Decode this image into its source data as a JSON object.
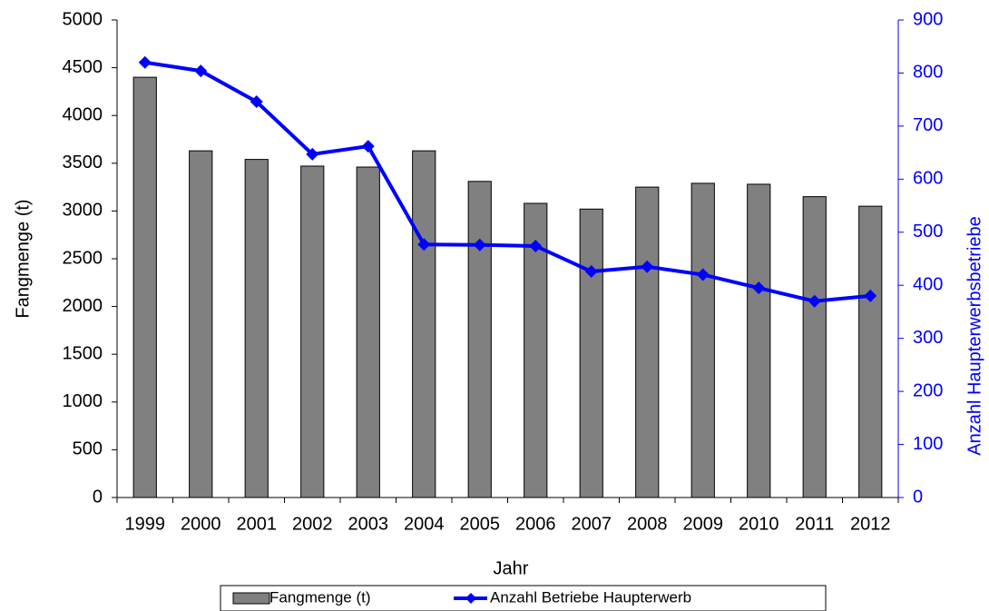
{
  "chart_data": {
    "type": "bar",
    "x_label": "Jahr",
    "y_label": "Fangmenge (t)",
    "y2_label": "Anzahl Haupterwerbsbetriebe",
    "categories": [
      "1999",
      "2000",
      "2001",
      "2002",
      "2003",
      "2004",
      "2005",
      "2006",
      "2007",
      "2008",
      "2009",
      "2010",
      "2011",
      "2012"
    ],
    "series": [
      {
        "name": "Fangmenge (t)",
        "type": "bar",
        "color": "#808080",
        "values": [
          4400,
          3630,
          3540,
          3470,
          3460,
          3630,
          3310,
          3080,
          3020,
          3250,
          3290,
          3280,
          3150,
          3050
        ]
      },
      {
        "name": "Anzahl Betriebe Haupterwerb",
        "type": "line",
        "axis": "y2",
        "color": "#0000ff",
        "values": [
          820,
          804,
          746,
          647,
          662,
          477,
          476,
          474,
          426,
          435,
          420,
          395,
          370,
          380
        ]
      }
    ],
    "ylim": [
      0,
      5000
    ],
    "yticks": [
      0,
      500,
      1000,
      1500,
      2000,
      2500,
      3000,
      3500,
      4000,
      4500,
      5000
    ],
    "y2lim": [
      0,
      900
    ],
    "y2ticks": [
      0,
      100,
      200,
      300,
      400,
      500,
      600,
      700,
      800,
      900
    ],
    "legend": "bottom"
  }
}
